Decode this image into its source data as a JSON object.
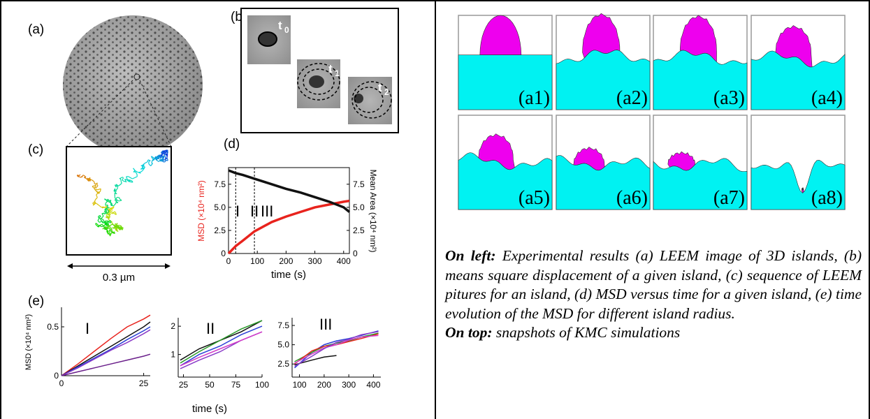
{
  "left": {
    "panel_labels": {
      "a": "(a)",
      "b": "(b)",
      "c": "(c)",
      "d": "(d)",
      "e": "(e)"
    },
    "b_times": [
      {
        "t": "t",
        "sub": "0"
      },
      {
        "t": "t",
        "sub": "1"
      },
      {
        "t": "t",
        "sub": "2"
      }
    ],
    "scale_label": "0.3 µm",
    "chart_d": {
      "type": "line",
      "xlabel": "time (s)",
      "ylabel": "MSD (×10⁴ nm²)",
      "y2label": "Mean Area (×10⁴ nm²)",
      "xlim": [
        0,
        420
      ],
      "xticks": [
        0,
        100,
        200,
        300,
        400
      ],
      "ylim": [
        0,
        9.3
      ],
      "yticks": [
        0,
        2.5,
        {
          "value": 5,
          "label": "5.0"
        },
        7.5
      ],
      "y2lim": [
        0,
        9.3
      ],
      "y2ticks": [
        0,
        2.5,
        {
          "value": 5,
          "label": "5.0"
        },
        7.5
      ],
      "phase_bounds": [
        25,
        90
      ],
      "regions": [
        "I",
        "II",
        "III"
      ],
      "x": [
        0,
        25,
        50,
        90,
        150,
        200,
        250,
        300,
        350,
        400,
        420
      ],
      "series": [
        {
          "color": "#e8231d",
          "values": [
            0,
            0.8,
            1.4,
            2.4,
            3.4,
            4.0,
            4.5,
            5.0,
            5.3,
            5.6,
            5.7
          ]
        },
        {
          "color": "#111111",
          "axis": "y2",
          "values": [
            9.0,
            8.7,
            8.5,
            8.1,
            7.5,
            7.0,
            6.6,
            6.1,
            5.6,
            5.0,
            4.5
          ]
        }
      ]
    },
    "chart_e": {
      "ylabel": "MSD (×10⁴ nm²)",
      "xlabel": "time (s)",
      "charts": [
        {
          "type": "line",
          "region": "I",
          "xlim": [
            0,
            27
          ],
          "xticks": [
            0,
            25
          ],
          "ylim": [
            0,
            0.7
          ],
          "yticks": [
            0,
            0.5
          ],
          "x": [
            0,
            5,
            10,
            15,
            20,
            25,
            27
          ],
          "series": [
            {
              "color": "#e8231d",
              "values": [
                0,
                0.12,
                0.25,
                0.38,
                0.5,
                0.58,
                0.62
              ]
            },
            {
              "color": "#111111",
              "values": [
                0,
                0.1,
                0.2,
                0.3,
                0.4,
                0.5,
                0.55
              ]
            },
            {
              "color": "#2b3fd6",
              "values": [
                0,
                0.09,
                0.18,
                0.27,
                0.37,
                0.46,
                0.5
              ]
            },
            {
              "color": "#8a3cc8",
              "values": [
                0,
                0.08,
                0.17,
                0.26,
                0.34,
                0.43,
                0.47
              ]
            },
            {
              "color": "#6a1f8a",
              "values": [
                0,
                0.04,
                0.08,
                0.12,
                0.16,
                0.2,
                0.22
              ]
            }
          ]
        },
        {
          "type": "line",
          "region": "II",
          "xlim": [
            20,
            100
          ],
          "xticks": [
            25,
            50,
            75,
            100
          ],
          "ylim": [
            0.2,
            2.3
          ],
          "yticks": [
            1,
            2
          ],
          "x": [
            22,
            40,
            60,
            80,
            100
          ],
          "series": [
            {
              "color": "#111111",
              "values": [
                0.8,
                1.2,
                1.5,
                1.8,
                2.2
              ]
            },
            {
              "color": "#2a9a2a",
              "values": [
                0.7,
                1.1,
                1.5,
                1.9,
                2.2
              ]
            },
            {
              "color": "#2b3fd6",
              "values": [
                0.6,
                1.0,
                1.3,
                1.7,
                2.0
              ]
            },
            {
              "color": "#8a3cc8",
              "values": [
                0.5,
                0.8,
                1.1,
                1.5,
                1.8
              ]
            },
            {
              "color": "#d23cc8",
              "values": [
                0.6,
                0.9,
                1.2,
                1.5,
                1.8
              ]
            }
          ]
        },
        {
          "type": "line",
          "region": "III",
          "xlim": [
            70,
            430
          ],
          "xticks": [
            100,
            200,
            300,
            400
          ],
          "ylim": [
            0.8,
            8.5
          ],
          "yticks": [
            2.5,
            {
              "value": 5,
              "label": "5.0"
            },
            7.5
          ],
          "x": [
            80,
            150,
            200,
            250,
            300,
            350,
            420
          ],
          "series": [
            {
              "color": "#2b3fd6",
              "values": [
                2.0,
                4.0,
                5.0,
                5.5,
                5.8,
                6.2,
                6.8
              ]
            },
            {
              "color": "#111111",
              "values": [
                2.4,
                3.0,
                3.4,
                3.6,
                null,
                null,
                null
              ]
            },
            {
              "color": "#2a9a2a",
              "values": [
                2.8,
                4.0,
                4.8,
                5.2,
                5.5,
                6.0,
                6.5
              ]
            },
            {
              "color": "#e8231d",
              "values": [
                2.5,
                4.2,
                4.8,
                5.0,
                5.4,
                5.8,
                6.4
              ]
            },
            {
              "color": "#d23cc8",
              "values": [
                2.6,
                3.8,
                4.6,
                5.0,
                5.6,
                6.0,
                6.2
              ]
            },
            {
              "color": "#8a3cc8",
              "values": [
                2.2,
                3.5,
                4.5,
                5.3,
                5.7,
                6.3,
                6.7
              ]
            }
          ]
        }
      ]
    }
  },
  "right": {
    "tiles": [
      "(a1)",
      "(a2)",
      "(a3)",
      "(a4)",
      "(a5)",
      "(a6)",
      "(a7)",
      "(a8)"
    ],
    "caption": {
      "left_label": "On left:",
      "left_text": "Experimental results (a) LEEM image of 3D islands, (b) means square displacement of a given island, (c) sequence of LEEM pitures for an island, (d) MSD versus time for a given island, (e) time evolution of the MSD for different island radius.",
      "top_label": "On top:",
      "top_text": "snapshots of KMC simulations"
    }
  }
}
